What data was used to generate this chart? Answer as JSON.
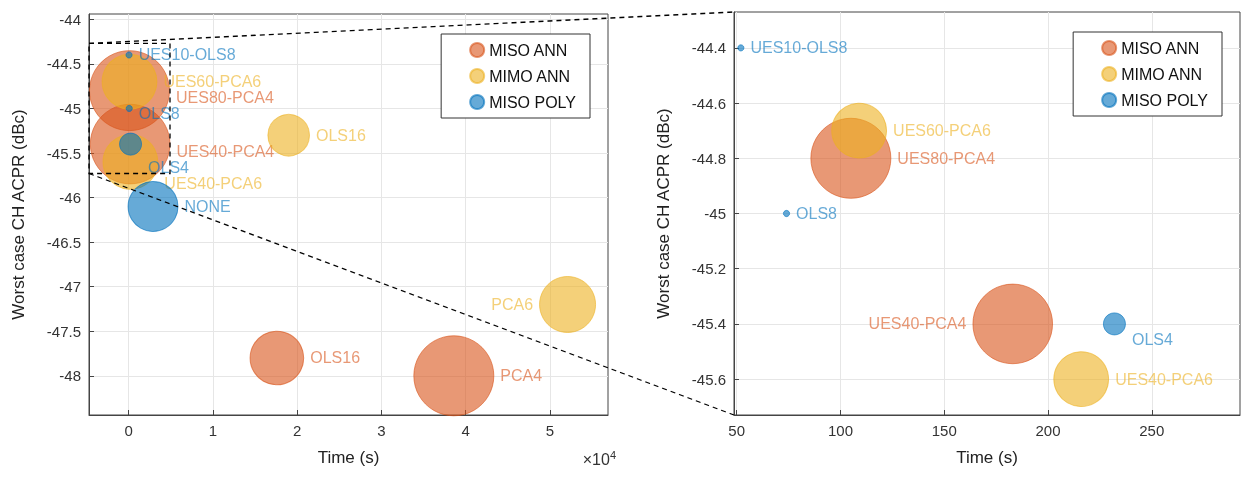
{
  "chart_data": [
    {
      "type": "bubble",
      "xlabel": "Time (s)",
      "ylabel": "Worst case CH ACPR (dBc)",
      "xlim": [
        -0.47,
        5.69
      ],
      "xticks": [
        0,
        1,
        2,
        3,
        4,
        5
      ],
      "ylim": [
        -48.44,
        -43.94
      ],
      "yticks": [
        -48,
        -47.5,
        -47,
        -46.5,
        -46,
        -45.5,
        -45,
        -44.5,
        -44
      ],
      "grid": true,
      "legend": "top right",
      "annotations": [
        "×10$^{4}$"
      ],
      "series": [
        {
          "name": "MISO ANN",
          "color": "#d95319",
          "x": [
            0.0105,
            0.0183,
            1.76,
            3.86
          ],
          "values": [
            -44.8,
            -45.4,
            -47.8,
            -48.0
          ],
          "sizes": [
            1,
            0.99,
            0.45,
            1
          ],
          "value_labels": [
            "UES80-PCA4",
            "UES40-PCA4",
            "OLS16",
            "PCA4"
          ]
        },
        {
          "name": "MIMO ANN",
          "color": "#edb120",
          "x": [
            0.0109,
            0.0216,
            1.9,
            5.21
          ],
          "values": [
            -44.7,
            -45.6,
            -45.3,
            -47.2
          ],
          "sizes": [
            0.47,
            0.47,
            0.27,
            0.49
          ],
          "value_labels": [
            "UES60-PCA6",
            "UES40-PCA6",
            "OLS16",
            "PCA6"
          ]
        },
        {
          "name": "MISO POLY",
          "color": "#0072bd",
          "x": [
            0.0052,
            0.0074,
            0.0232,
            0.29
          ],
          "values": [
            -44.4,
            -45.0,
            -45.4,
            -46.1
          ],
          "sizes": [
            0.006,
            0.006,
            0.076,
            0.39
          ],
          "value_labels": [
            "UES10-OLS8",
            "OLS8",
            "OLS4",
            "NONE"
          ]
        }
      ]
    },
    {
      "type": "bubble",
      "xlabel": "Time (s)",
      "ylabel": "Worst case CH ACPR (dBc)",
      "xlim": [
        48.7,
        292.5
      ],
      "xticks": [
        50,
        100,
        150,
        200,
        250
      ],
      "ylim": [
        -45.73,
        -44.27
      ],
      "yticks": [
        -45.6,
        -45.4,
        -45.2,
        -45,
        -44.8,
        -44.6,
        -44.4
      ],
      "grid": true,
      "legend": "top right",
      "series": [
        {
          "name": "MISO ANN",
          "color": "#d95319",
          "x": [
            105,
            183
          ],
          "values": [
            -44.8,
            -45.4
          ],
          "sizes": [
            1,
            0.99
          ],
          "value_labels": [
            "UES80-PCA4",
            "UES40-PCA4"
          ]
        },
        {
          "name": "MIMO ANN",
          "color": "#edb120",
          "x": [
            109,
            216
          ],
          "values": [
            -44.7,
            -45.6
          ],
          "sizes": [
            0.47,
            0.47
          ],
          "value_labels": [
            "UES60-PCA6",
            "UES40-PCA6"
          ]
        },
        {
          "name": "MISO POLY",
          "color": "#0072bd",
          "x": [
            52,
            74,
            232
          ],
          "values": [
            -44.4,
            -45.0,
            -45.4
          ],
          "sizes": [
            0.006,
            0.006,
            0.076
          ],
          "value_labels": [
            "UES10-OLS8",
            "OLS8",
            "OLS4"
          ]
        }
      ]
    }
  ]
}
